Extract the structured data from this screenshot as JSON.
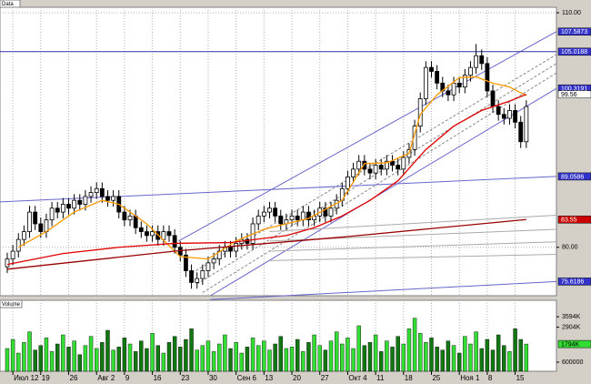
{
  "chart_data": {
    "type": "candlestick",
    "title": "Data",
    "open": [
      77.5,
      78.5,
      79.5,
      81,
      82,
      84.5,
      83,
      82,
      83.5,
      85,
      84.5,
      85.5,
      85,
      86,
      85.5,
      86.5,
      87,
      87.5,
      86.5,
      86,
      86.5,
      84.5,
      83.5,
      84,
      82.5,
      82,
      81.5,
      82,
      81,
      82,
      81.5,
      80,
      79,
      77,
      75.5,
      76,
      77,
      78,
      78.5,
      79.5,
      80,
      79.5,
      80.5,
      81,
      80.5,
      83,
      84,
      84.5,
      85,
      84,
      83,
      83.5,
      84,
      83.5,
      84.5,
      83.5,
      84,
      85,
      84,
      85,
      86,
      87.5,
      89,
      90,
      91,
      90,
      89.5,
      90.5,
      90,
      91,
      90.5,
      90,
      91.5,
      92.5,
      95.5,
      99,
      103,
      102.5,
      101,
      100,
      99.5,
      101,
      100.5,
      102,
      103,
      104.5,
      103.5,
      100,
      98,
      97,
      96.5,
      97.5,
      96,
      93.5
    ],
    "high": [
      79.3,
      80.3,
      81.8,
      82.8,
      85.3,
      85.3,
      83.8,
      84.3,
      85.8,
      85.8,
      86.3,
      86.3,
      86.8,
      86.8,
      87.3,
      87.8,
      88.3,
      88.3,
      87.3,
      87.3,
      87.3,
      85.3,
      84.8,
      84.8,
      83.3,
      82.8,
      82.8,
      82.8,
      82.8,
      82.8,
      82.3,
      80.8,
      79.8,
      77.8,
      76.8,
      77.8,
      78.8,
      79.3,
      80.3,
      80.8,
      80.8,
      81.3,
      81.8,
      81.8,
      83.8,
      84.8,
      85.3,
      85.8,
      85.8,
      84.8,
      84.3,
      84.8,
      84.8,
      85.3,
      85.3,
      84.8,
      85.8,
      85.8,
      85.8,
      86.8,
      88.3,
      89.8,
      90.8,
      91.8,
      91.8,
      90.8,
      91.3,
      91.3,
      91.8,
      91.8,
      91.3,
      92.3,
      93.3,
      96.3,
      99.8,
      103.8,
      103.8,
      103.3,
      101.8,
      100.8,
      101.8,
      101.8,
      102.8,
      103.8,
      106,
      105.3,
      104.3,
      100.8,
      98.8,
      97.8,
      98.3,
      98.3,
      96.8,
      98.8
    ],
    "low": [
      76.7,
      77.7,
      78.7,
      80.2,
      81.2,
      82.2,
      81.2,
      81.2,
      82.7,
      83.7,
      83.7,
      84.2,
      84.2,
      84.7,
      84.7,
      85.7,
      86.2,
      85.7,
      85.2,
      85.2,
      83.7,
      82.7,
      82.7,
      81.7,
      81.2,
      80.7,
      80.7,
      80.2,
      80.2,
      80.7,
      79.2,
      78.2,
      76.2,
      74.7,
      74.7,
      75.2,
      76.2,
      77.2,
      77.7,
      78.7,
      78.7,
      78.7,
      79.7,
      79.7,
      79.7,
      82.2,
      83.2,
      83.7,
      83.2,
      82.2,
      82.2,
      82.7,
      82.7,
      82.7,
      82.7,
      82.7,
      83.2,
      83.2,
      83.2,
      84.2,
      85.2,
      86.7,
      88.2,
      89.2,
      89.2,
      88.7,
      88.7,
      89.2,
      89.2,
      89.7,
      89.2,
      89.2,
      90.7,
      91.7,
      94.7,
      98.2,
      101.7,
      100.2,
      99.2,
      98.7,
      98.7,
      99.7,
      99.7,
      101.2,
      102.2,
      102.7,
      99.2,
      97.2,
      96.2,
      95.7,
      95.7,
      95.2,
      92.7,
      92.7
    ],
    "close": [
      78.5,
      79.5,
      81,
      82,
      84.5,
      83,
      82,
      83.5,
      85,
      84.5,
      85.5,
      85,
      86,
      85.5,
      86.5,
      87,
      87.5,
      86.5,
      86,
      86.5,
      84.5,
      83.5,
      84,
      82.5,
      82,
      81.5,
      82,
      81,
      82,
      81.5,
      80,
      79,
      77,
      75.5,
      76,
      77,
      78,
      78.5,
      79.5,
      80,
      79.5,
      80.5,
      81,
      80.5,
      83,
      84,
      84.5,
      85,
      84,
      83,
      83.5,
      84,
      83.5,
      84.5,
      83.5,
      84,
      85,
      84,
      85,
      86,
      87.5,
      89,
      90,
      91,
      90,
      89.5,
      90.5,
      90,
      91,
      90.5,
      90,
      91.5,
      92.5,
      95.5,
      99,
      103,
      102.5,
      101,
      100,
      99.5,
      101,
      100.5,
      102,
      103,
      104.5,
      103.5,
      100,
      98,
      97,
      96.5,
      97.5,
      96,
      93.5,
      98
    ],
    "xlim": [
      -1.3,
      98.4
    ],
    "xticks": [
      {
        "value": 1,
        "label": "Июл 12"
      },
      {
        "value": 6,
        "label": "19"
      },
      {
        "value": 11,
        "label": "26"
      },
      {
        "value": 16,
        "label": "Авг 2"
      },
      {
        "value": 21,
        "label": "9"
      },
      {
        "value": 26,
        "label": "16"
      },
      {
        "value": 31,
        "label": "23"
      },
      {
        "value": 36,
        "label": "30"
      },
      {
        "value": 41,
        "label": "Сен 6"
      },
      {
        "value": 46,
        "label": "13"
      },
      {
        "value": 51,
        "label": "20"
      },
      {
        "value": 56,
        "label": "27"
      },
      {
        "value": 61,
        "label": "Окт 4"
      },
      {
        "value": 66,
        "label": "11"
      },
      {
        "value": 71,
        "label": "18"
      },
      {
        "value": 76,
        "label": "25"
      },
      {
        "value": 81,
        "label": "Ноя 1"
      },
      {
        "value": 86,
        "label": "8"
      },
      {
        "value": 91,
        "label": "15"
      }
    ],
    "ylim": [
      73.8,
      110.7
    ],
    "yticks": [
      {
        "value": 110,
        "label": "110.00"
      },
      {
        "value": 80,
        "label": "80.00"
      }
    ],
    "grid": true,
    "up_color": "#ffffff",
    "down_color": "#000000",
    "lines": [
      {
        "color": "#ff9900",
        "x": [
          2,
          7,
          12,
          17,
          20,
          25,
          31,
          36,
          41,
          46,
          54,
          60,
          64,
          68,
          72,
          74,
          77,
          81,
          84,
          87,
          90,
          93
        ],
        "values": [
          80,
          82,
          84.5,
          86,
          85.5,
          83,
          78.8,
          78.5,
          80.8,
          82.3,
          83.7,
          86,
          90.7,
          90.8,
          92,
          97,
          99.5,
          101.7,
          101.8,
          101,
          100.5,
          99.4
        ]
      },
      {
        "color": "#e00000",
        "x": [
          0,
          10,
          20,
          30,
          40,
          50,
          55,
          60,
          65,
          70,
          75,
          80,
          85,
          90,
          93
        ],
        "values": [
          77.8,
          79.2,
          80,
          80.5,
          80.6,
          81.5,
          82.5,
          84,
          86,
          88.5,
          92.5,
          95.5,
          97.5,
          98.7,
          99.56
        ]
      },
      {
        "color": "#990000",
        "x": [
          0,
          30,
          60,
          93
        ],
        "values": [
          77.2,
          79.5,
          81.3,
          83.55
        ]
      }
    ],
    "trendlines": [
      {
        "color": "#6666cc",
        "dashed": false,
        "x": [
          30.7,
          98.4
        ],
        "values": [
          80.8,
          107.5873
        ]
      },
      {
        "color": "#6666cc",
        "dashed": false,
        "x": [
          36.4,
          98.4
        ],
        "values": [
          73.8,
          100.3191
        ]
      },
      {
        "color": "#888888",
        "dashed": true,
        "x": [
          33.1,
          98.4
        ],
        "values": [
          76.7,
          104.65
        ]
      },
      {
        "color": "#888888",
        "dashed": true,
        "x": [
          34,
          98.4
        ],
        "values": [
          75.3,
          103.5
        ]
      },
      {
        "color": "#888888",
        "dashed": true,
        "x": [
          35,
          98.4
        ],
        "values": [
          74.2,
          102.3
        ]
      },
      {
        "color": "#6666cc",
        "dashed": false,
        "x": [
          -1.3,
          98.4
        ],
        "values": [
          85.8,
          89.0586
        ]
      },
      {
        "color": "#6666cc",
        "dashed": false,
        "x": [
          36.4,
          98.4
        ],
        "values": [
          73.3,
          75.6186
        ]
      },
      {
        "color": "#3333aa",
        "dashed": false,
        "x": [
          -1.3,
          98.4
        ],
        "values": [
          105.0188,
          105.0188
        ]
      },
      {
        "color": "#aaaaaa",
        "dashed": false,
        "x": [
          47,
          98.4
        ],
        "values": [
          82,
          84.1
        ]
      },
      {
        "color": "#aaaaaa",
        "dashed": false,
        "x": [
          47,
          98.4
        ],
        "values": [
          80.8,
          82.3
        ]
      },
      {
        "color": "#aaaaaa",
        "dashed": false,
        "x": [
          47,
          98.4
        ],
        "values": [
          79.5,
          80.7
        ]
      },
      {
        "color": "#aaaaaa",
        "dashed": false,
        "x": [
          47,
          98.4
        ],
        "values": [
          78.3,
          79.1
        ]
      }
    ],
    "price_labels": [
      {
        "value": 107.5873,
        "color": "#3333cc"
      },
      {
        "value": 105.0188,
        "color": "#3333cc"
      },
      {
        "value": 100.3191,
        "color": "#3333cc"
      },
      {
        "value": 99.56,
        "color": "#ffffff"
      },
      {
        "value": 89.0586,
        "color": "#3333cc"
      },
      {
        "value": 83.55,
        "color": "#cc0000"
      },
      {
        "value": 75.6186,
        "color": "#3333cc"
      }
    ]
  },
  "volume_chart": {
    "type": "bar",
    "title": "Volume",
    "values": [
      1500000,
      2100000,
      1200000,
      1900000,
      2600000,
      1400000,
      1700000,
      2200000,
      1300000,
      1800000,
      2400000,
      1600000,
      2000000,
      1100000,
      1700000,
      2300000,
      1500000,
      1900000,
      2700000,
      1400000,
      1600000,
      2200000,
      1800000,
      1300000,
      2000000,
      1500000,
      2500000,
      1700000,
      1200000,
      1900000,
      2300000,
      1600000,
      2100000,
      2800000,
      1400000,
      1700000,
      2000000,
      1300000,
      1800000,
      2400000,
      1500000,
      1900000,
      1200000,
      1600000,
      2200000,
      1700000,
      2000000,
      1400000,
      1800000,
      2300000,
      1500000,
      1600000,
      2100000,
      1300000,
      1900000,
      2400000,
      1700000,
      1400000,
      2000000,
      2600000,
      1800000,
      2200000,
      1500000,
      3000000,
      1700000,
      1900000,
      2400000,
      1300000,
      2000000,
      1600000,
      2300000,
      1800000,
      2800000,
      3500000,
      2500000,
      1900000,
      2200000,
      1600000,
      1400000,
      2000000,
      1700000,
      1200000,
      2300000,
      1800000,
      2600000,
      1500000,
      2100000,
      1400000,
      2400000,
      1700000,
      1300000,
      2800000,
      2100000,
      1794000
    ],
    "value_badge": {
      "value": 1794000,
      "label": "1794K",
      "color": "#33dd33"
    },
    "ylim": [
      0,
      4380000
    ],
    "yticks": [
      {
        "value": 3594000,
        "label": "3594K"
      },
      {
        "value": 2904000,
        "label": "2904K"
      },
      {
        "value": 600000,
        "label": "600000"
      }
    ],
    "up_color": "#33dd33",
    "down_color": "#117711"
  }
}
